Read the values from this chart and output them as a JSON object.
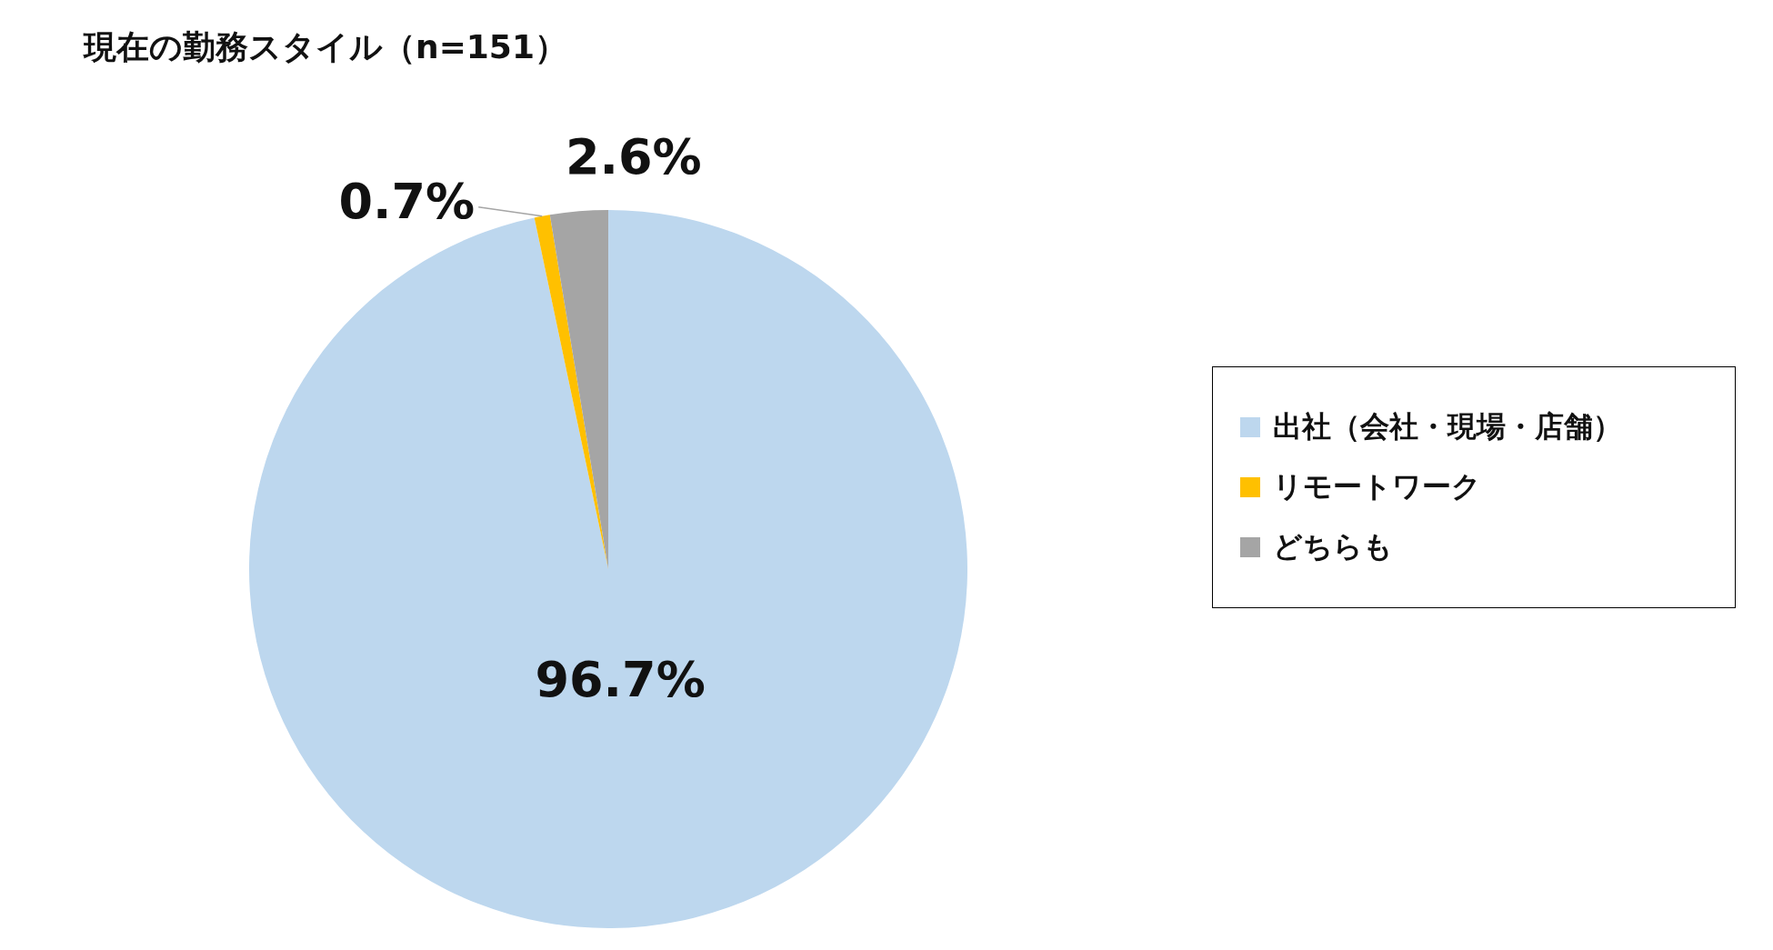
{
  "chart_data": {
    "type": "pie",
    "title": "現在の勤務スタイル（n=151）",
    "categories": [
      "出社（会社・現場・店舗）",
      "リモートワーク",
      "どちらも"
    ],
    "values": [
      96.7,
      0.7,
      2.6
    ],
    "colors": [
      "#bdd7ee",
      "#ffc000",
      "#a5a5a5"
    ],
    "value_labels": [
      "96.7%",
      "0.7%",
      "2.6%"
    ],
    "legend": "right"
  }
}
